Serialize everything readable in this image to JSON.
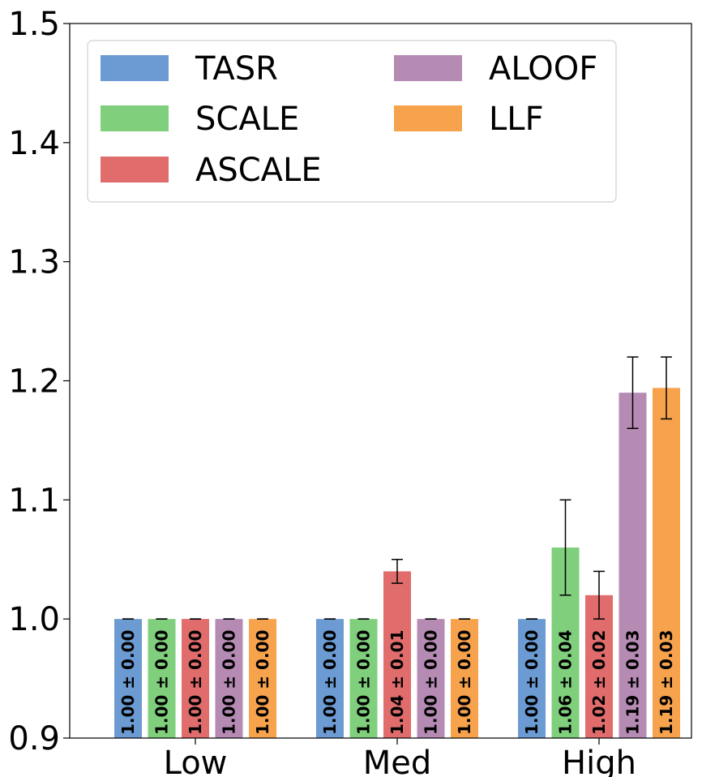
{
  "chart_data": {
    "type": "bar",
    "categories": [
      "Low",
      "Med",
      "High"
    ],
    "series": [
      {
        "name": "TASR",
        "color": "#6b9bd2",
        "values": [
          1.0,
          1.0,
          1.0
        ],
        "errors": [
          0.0,
          0.0,
          0.0
        ],
        "labels": [
          "1.00 ± 0.00",
          "1.00 ± 0.00",
          "1.00 ± 0.00"
        ]
      },
      {
        "name": "SCALE",
        "color": "#7fcf7c",
        "values": [
          1.0,
          1.0,
          1.06
        ],
        "errors": [
          0.0,
          0.0,
          0.04
        ],
        "labels": [
          "1.00 ± 0.00",
          "1.00 ± 0.00",
          "1.06 ± 0.04"
        ]
      },
      {
        "name": "ASCALE",
        "color": "#e06c6c",
        "values": [
          1.0,
          1.04,
          1.02
        ],
        "errors": [
          0.0,
          0.01,
          0.02
        ],
        "labels": [
          "1.00 ± 0.00",
          "1.04 ± 0.01",
          "1.02 ± 0.02"
        ]
      },
      {
        "name": "ALOOF",
        "color": "#b58bb4",
        "values": [
          1.0,
          1.0,
          1.19
        ],
        "errors": [
          0.0,
          0.0,
          0.03
        ],
        "labels": [
          "1.00 ± 0.00",
          "1.00 ± 0.00",
          "1.19 ± 0.03"
        ]
      },
      {
        "name": "LLF",
        "color": "#f7a24c",
        "values": [
          1.0,
          1.0,
          1.194
        ],
        "errors": [
          0.0,
          0.0,
          0.026
        ],
        "labels": [
          "1.00 ± 0.00",
          "1.00 ± 0.00",
          "1.19 ± 0.03"
        ]
      }
    ],
    "title": "",
    "xlabel": "",
    "ylabel": "",
    "ylim": [
      0.9,
      1.5
    ],
    "yticks": [
      "0.9",
      "1.0",
      "1.1",
      "1.2",
      "1.3",
      "1.4",
      "1.5"
    ],
    "grid": false,
    "legend_position": "top-left"
  }
}
